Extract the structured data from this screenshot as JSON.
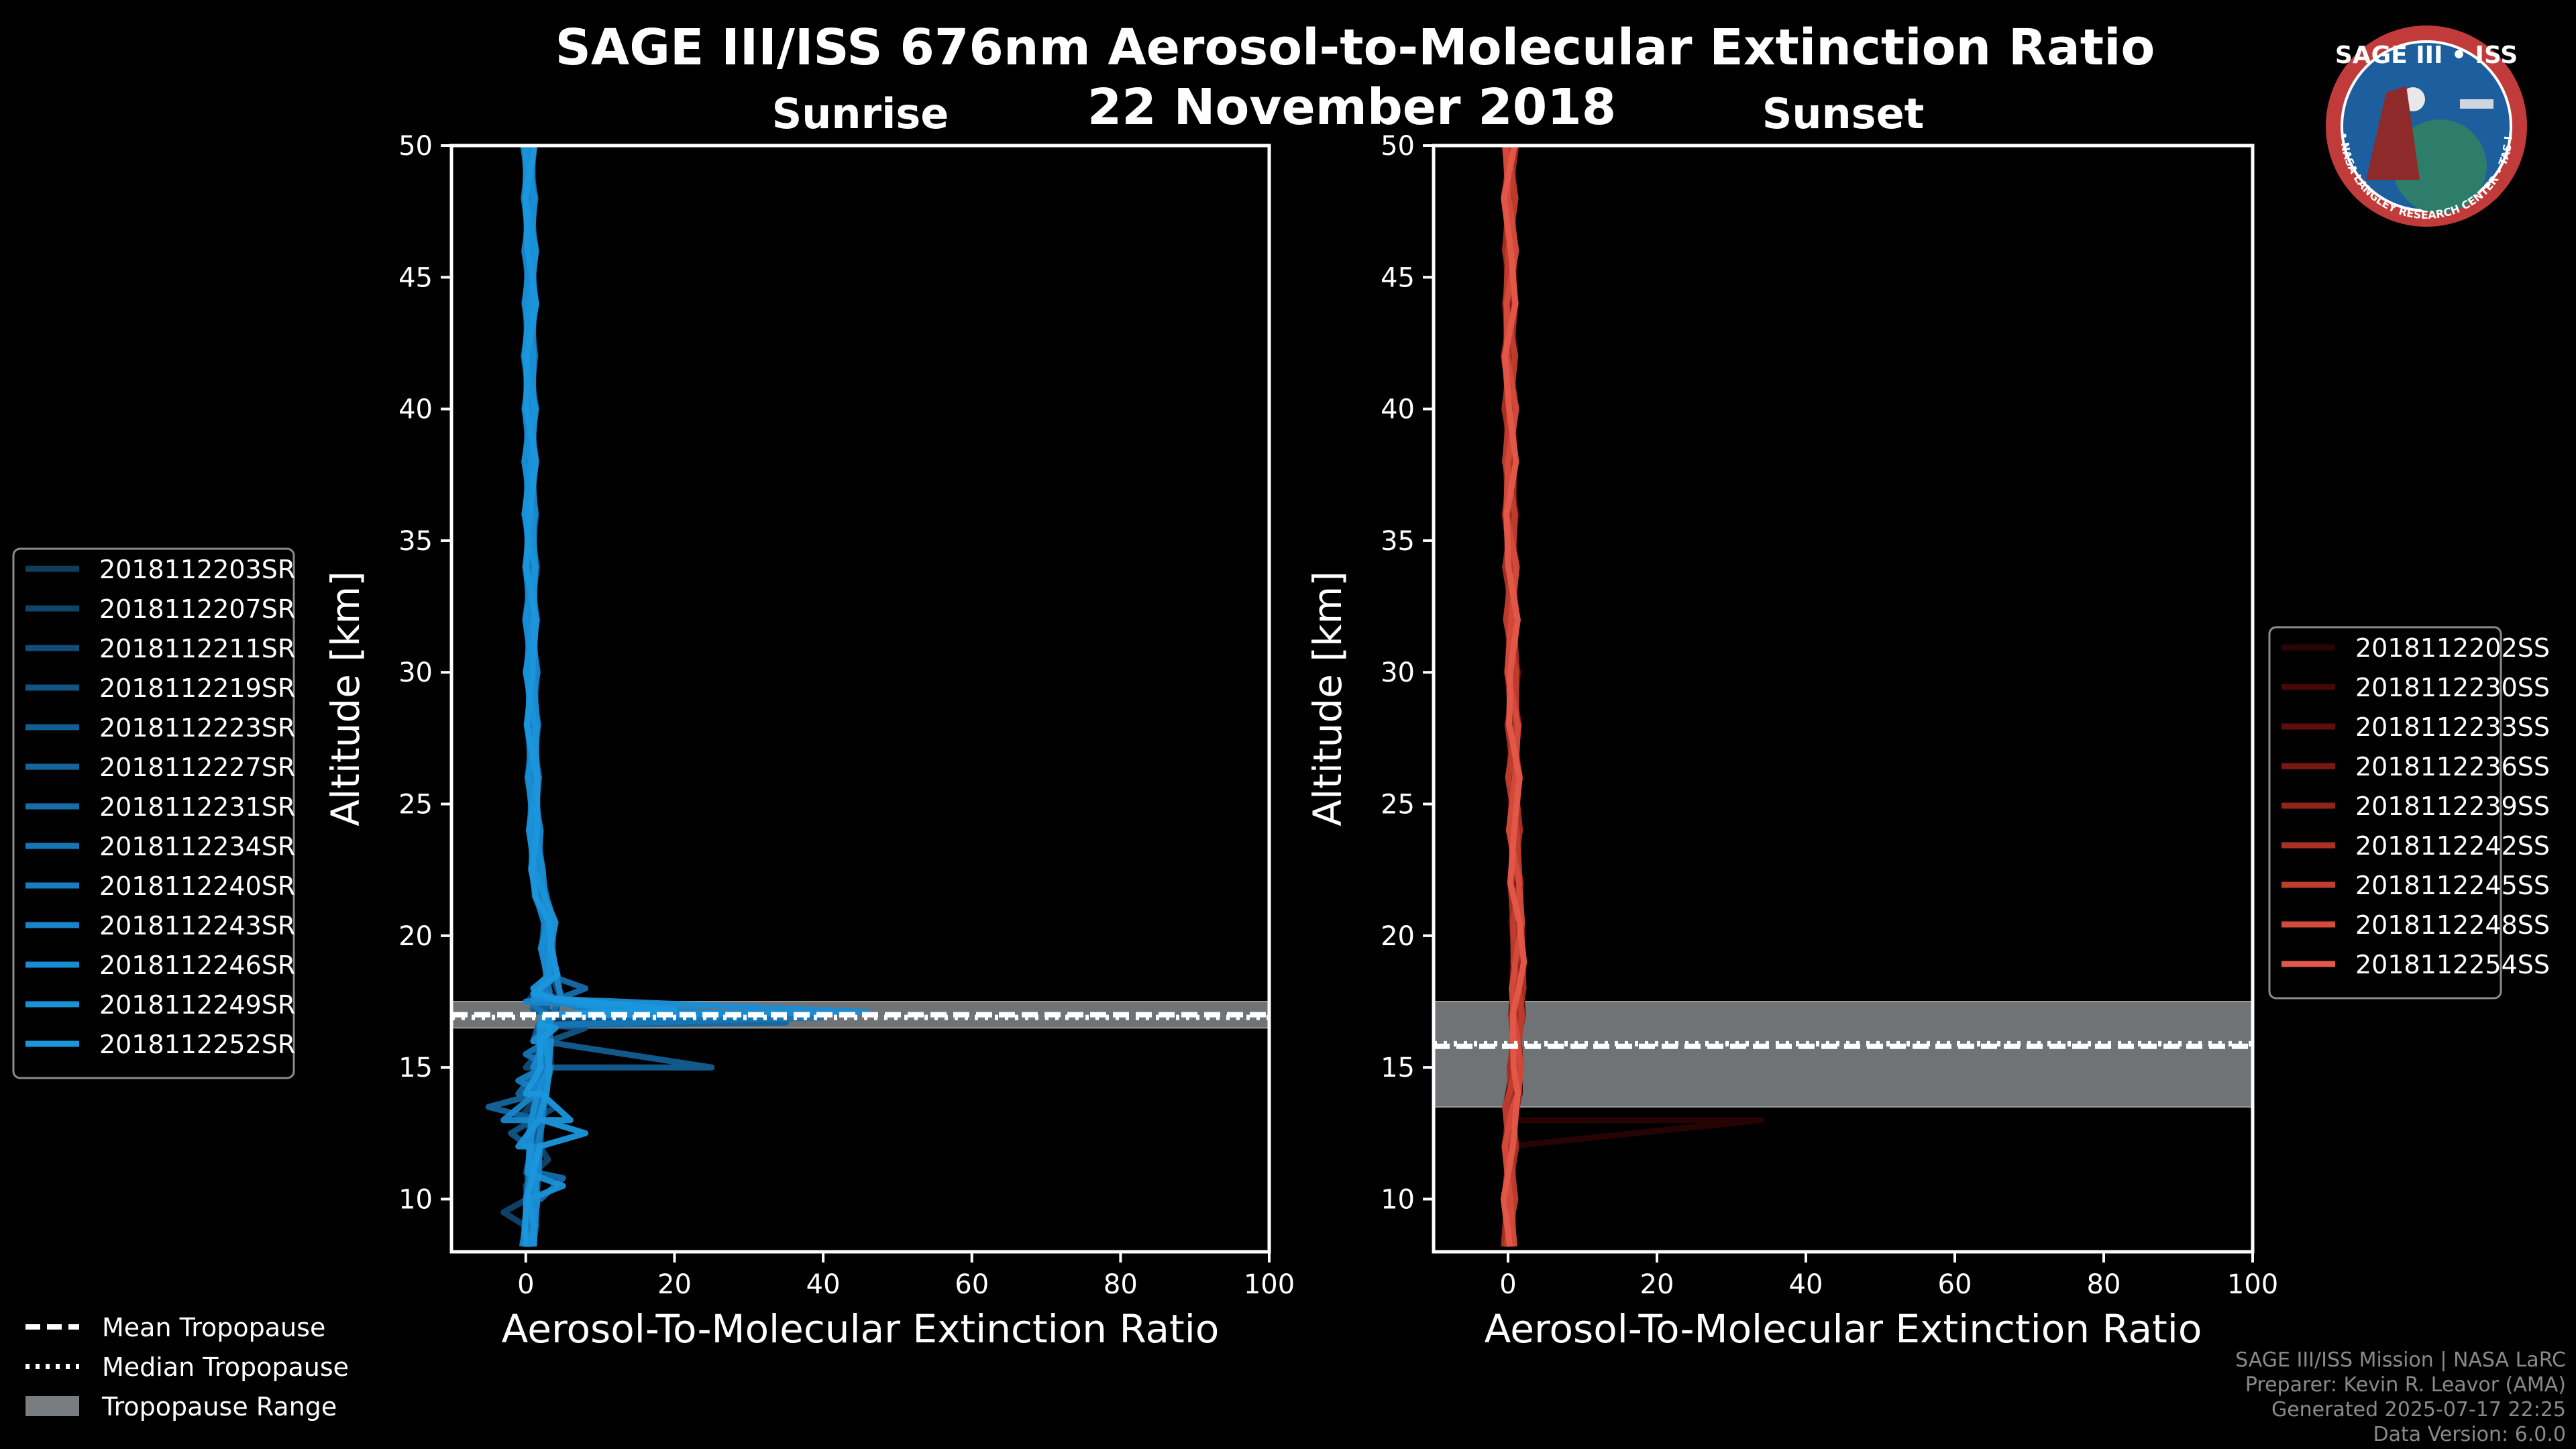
{
  "title": "SAGE III/ISS 676nm Aerosol-to-Molecular Extinction Ratio",
  "date": "22 November 2018",
  "logo": {
    "name": "SAGE III • ISS",
    "caption": "BALL • NASA LANGLEY RESEARCH CENTER • TAS-I • ESA",
    "colors": {
      "ring": "#c23b3b",
      "inner": "#1d5f9e",
      "text": "#ffffff"
    }
  },
  "credits": {
    "line1": "SAGE III/ISS Mission | NASA LaRC",
    "line2": "Preparer: Kevin R. Leavor (AMA)",
    "line3": "Generated 2025-07-17 22:25",
    "line4": "Data Version: 6.0.0"
  },
  "tropo_legend": {
    "mean": "Mean Tropopause",
    "median": "Median Tropopause",
    "range": "Tropopause Range"
  },
  "chart_data": [
    {
      "type": "line",
      "title": "Sunrise",
      "xlabel": "Aerosol-To-Molecular Extinction Ratio",
      "ylabel": "Altitude [km]",
      "xlim": [
        -10,
        100
      ],
      "ylim": [
        8,
        50
      ],
      "xticks": [
        0,
        20,
        40,
        60,
        80,
        100
      ],
      "yticks": [
        10,
        15,
        20,
        25,
        30,
        35,
        40,
        45,
        50
      ],
      "grid": false,
      "legend_position": "left",
      "tropopause": {
        "mean": 17.0,
        "median": 16.9,
        "range": [
          16.5,
          17.5
        ]
      },
      "base_profile": [
        [
          0.3,
          8.2
        ],
        [
          0.6,
          9
        ],
        [
          0.8,
          10
        ],
        [
          1,
          11
        ],
        [
          1.2,
          12
        ],
        [
          1.5,
          13
        ],
        [
          2,
          14
        ],
        [
          2.6,
          15
        ],
        [
          2.6,
          16
        ],
        [
          2.5,
          16.6
        ],
        [
          3,
          17
        ],
        [
          4,
          17.6
        ],
        [
          3.5,
          18.5
        ],
        [
          2.8,
          19.5
        ],
        [
          3.2,
          20.5
        ],
        [
          2,
          21.5
        ],
        [
          1.5,
          22.5
        ],
        [
          1.2,
          24
        ],
        [
          1,
          26
        ],
        [
          0.9,
          28
        ],
        [
          0.8,
          30
        ],
        [
          0.7,
          32
        ],
        [
          0.7,
          34
        ],
        [
          0.6,
          36
        ],
        [
          0.6,
          38
        ],
        [
          0.6,
          40
        ],
        [
          0.5,
          42
        ],
        [
          0.6,
          44
        ],
        [
          0.6,
          46
        ],
        [
          0.5,
          48
        ],
        [
          0.4,
          50
        ]
      ],
      "series": [
        {
          "name": "2018112203SR",
          "color": "#0f3d5c",
          "spike": [
            [
              0,
              11
            ],
            [
              2,
              12.5
            ],
            [
              0.5,
              14
            ],
            [
              1,
              16
            ],
            [
              6,
              16.8
            ],
            [
              0.5,
              17.6
            ]
          ]
        },
        {
          "name": "2018112207SR",
          "color": "#10456a",
          "spike": [
            [
              -3,
              9.5
            ],
            [
              0,
              10.5
            ],
            [
              3,
              11.5
            ],
            [
              -1,
              13
            ],
            [
              2,
              15
            ],
            [
              4,
              17
            ],
            [
              1,
              18
            ]
          ]
        },
        {
          "name": "2018112211SR",
          "color": "#114d78",
          "spike": [
            [
              1,
              12
            ],
            [
              4,
              13.5
            ],
            [
              0,
              15
            ],
            [
              12,
              16.9
            ],
            [
              1,
              17.5
            ]
          ]
        },
        {
          "name": "2018112219SR",
          "color": "#125585",
          "spike": [
            [
              -2,
              12.5
            ],
            [
              2,
              13.3
            ],
            [
              0,
              14.5
            ],
            [
              8,
              16.5
            ],
            [
              1,
              17.2
            ]
          ]
        },
        {
          "name": "2018112223SR",
          "color": "#135d92",
          "spike": [
            [
              0,
              14
            ],
            [
              25,
              15
            ],
            [
              1,
              16
            ],
            [
              20,
              16.8
            ],
            [
              2,
              17.6
            ]
          ]
        },
        {
          "name": "2018112227SR",
          "color": "#14659e",
          "spike": [
            [
              -5,
              13.5
            ],
            [
              -1,
              14
            ],
            [
              3,
              16
            ],
            [
              35,
              16.7
            ],
            [
              1,
              17.3
            ]
          ]
        },
        {
          "name": "2018112231SR",
          "color": "#156daa",
          "spike": [
            [
              2,
              10
            ],
            [
              5,
              10.8
            ],
            [
              0,
              12
            ],
            [
              1,
              15
            ],
            [
              8,
              18
            ],
            [
              3,
              18.8
            ]
          ]
        },
        {
          "name": "2018112234SR",
          "color": "#1675b6",
          "spike": [
            [
              0,
              15.5
            ],
            [
              40,
              16.9
            ],
            [
              1,
              17.4
            ]
          ]
        },
        {
          "name": "2018112240SR",
          "color": "#177dc1",
          "spike": [
            [
              -1,
              14.5
            ],
            [
              2,
              16
            ],
            [
              10,
              17
            ],
            [
              2,
              18
            ]
          ]
        },
        {
          "name": "2018112243SR",
          "color": "#1885cb",
          "spike": [
            [
              0,
              12
            ],
            [
              -3,
              13
            ],
            [
              1,
              15
            ],
            [
              30,
              17.0
            ],
            [
              0,
              17.5
            ]
          ]
        },
        {
          "name": "2018112246SR",
          "color": "#198dd3",
          "spike": [
            [
              1,
              16
            ],
            [
              46,
              17.1
            ],
            [
              1,
              17.6
            ]
          ]
        },
        {
          "name": "2018112249SR",
          "color": "#1a92d8",
          "spike": [
            [
              5,
              10.5
            ],
            [
              -1,
              12
            ],
            [
              2,
              16
            ],
            [
              15,
              17
            ],
            [
              1,
              18
            ]
          ]
        },
        {
          "name": "2018112252SR",
          "color": "#1b96dc",
          "spike": [
            [
              8,
              12.5
            ],
            [
              6,
              13
            ],
            [
              0,
              14
            ],
            [
              4,
              16.5
            ],
            [
              20,
              17.2
            ],
            [
              1,
              17.8
            ]
          ]
        }
      ]
    },
    {
      "type": "line",
      "title": "Sunset",
      "xlabel": "Aerosol-To-Molecular Extinction Ratio",
      "ylabel": "Altitude [km]",
      "xlim": [
        -10,
        100
      ],
      "ylim": [
        8,
        50
      ],
      "xticks": [
        0,
        20,
        40,
        60,
        80,
        100
      ],
      "yticks": [
        10,
        15,
        20,
        25,
        30,
        35,
        40,
        45,
        50
      ],
      "grid": false,
      "legend_position": "right",
      "tropopause": {
        "mean": 15.8,
        "median": 15.9,
        "range": [
          13.5,
          17.5
        ]
      },
      "base_profile": [
        [
          0.1,
          8.2
        ],
        [
          0.2,
          10
        ],
        [
          0.3,
          12
        ],
        [
          0.4,
          13.5
        ],
        [
          0.8,
          14
        ],
        [
          1,
          15
        ],
        [
          1.2,
          17
        ],
        [
          1.3,
          18
        ],
        [
          1.4,
          19
        ],
        [
          1.2,
          20.5
        ],
        [
          1,
          22
        ],
        [
          0.9,
          24
        ],
        [
          0.8,
          26
        ],
        [
          0.7,
          28
        ],
        [
          0.6,
          30
        ],
        [
          0.5,
          32
        ],
        [
          0.4,
          34
        ],
        [
          0.3,
          36
        ],
        [
          0.3,
          38
        ],
        [
          0.3,
          40
        ],
        [
          0.2,
          42
        ],
        [
          0.3,
          44
        ],
        [
          0.3,
          46
        ],
        [
          0.2,
          48
        ],
        [
          0.3,
          50
        ]
      ],
      "series": [
        {
          "name": "2018112202SS",
          "color": "#2a0303",
          "spike": [
            [
              0.5,
              13.6
            ],
            [
              34,
              13.0
            ],
            [
              0.5,
              13.0
            ]
          ]
        },
        {
          "name": "2018112230SS",
          "color": "#450808",
          "spike": []
        },
        {
          "name": "2018112233SS",
          "color": "#5e0f0d",
          "spike": []
        },
        {
          "name": "2018112236SS",
          "color": "#781812",
          "spike": []
        },
        {
          "name": "2018112239SS",
          "color": "#912419",
          "spike": []
        },
        {
          "name": "2018112242SS",
          "color": "#a93023",
          "spike": []
        },
        {
          "name": "2018112245SS",
          "color": "#bf3d2f",
          "spike": []
        },
        {
          "name": "2018112248SS",
          "color": "#d44b3c",
          "spike": []
        },
        {
          "name": "2018112254SS",
          "color": "#e4584a",
          "spike": []
        }
      ]
    }
  ]
}
